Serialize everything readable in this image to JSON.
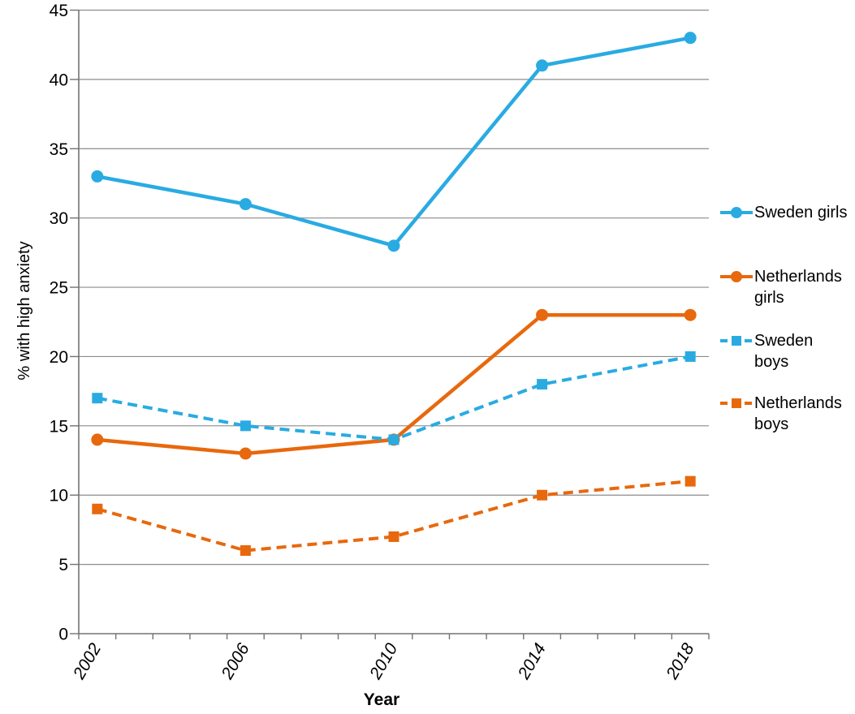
{
  "chart_data": {
    "type": "line",
    "title": "",
    "xlabel": "Year",
    "ylabel": "% with high anxiety",
    "x": [
      2002,
      2006,
      2010,
      2014,
      2018
    ],
    "x_tick_labels": [
      "2002",
      "2006",
      "2010",
      "2014",
      "2018"
    ],
    "yticks": [
      0,
      5,
      10,
      15,
      20,
      25,
      30,
      35,
      40,
      45
    ],
    "ylim": [
      0,
      45
    ],
    "grid": true,
    "legend_position": "right",
    "series": [
      {
        "name": "Sweden girls",
        "values": [
          33,
          31,
          28,
          41,
          43
        ],
        "color": "#29ABE2",
        "line": "solid",
        "marker": "circle"
      },
      {
        "name": "Netherlands girls",
        "values": [
          14,
          13,
          14,
          23,
          23
        ],
        "color": "#E8680D",
        "line": "solid",
        "marker": "circle"
      },
      {
        "name": "Sweden boys",
        "values": [
          17,
          15,
          14,
          18,
          20
        ],
        "color": "#29ABE2",
        "line": "dashed",
        "marker": "square"
      },
      {
        "name": "Netherlands boys",
        "values": [
          9,
          6,
          7,
          10,
          11
        ],
        "color": "#E8680D",
        "line": "dashed",
        "marker": "square"
      }
    ]
  },
  "colors": {
    "blue": "#29ABE2",
    "orange": "#E8680D",
    "gridline": "#8C8C8C",
    "axis": "#737373",
    "text": "#000000",
    "background": "#FFFFFF"
  }
}
